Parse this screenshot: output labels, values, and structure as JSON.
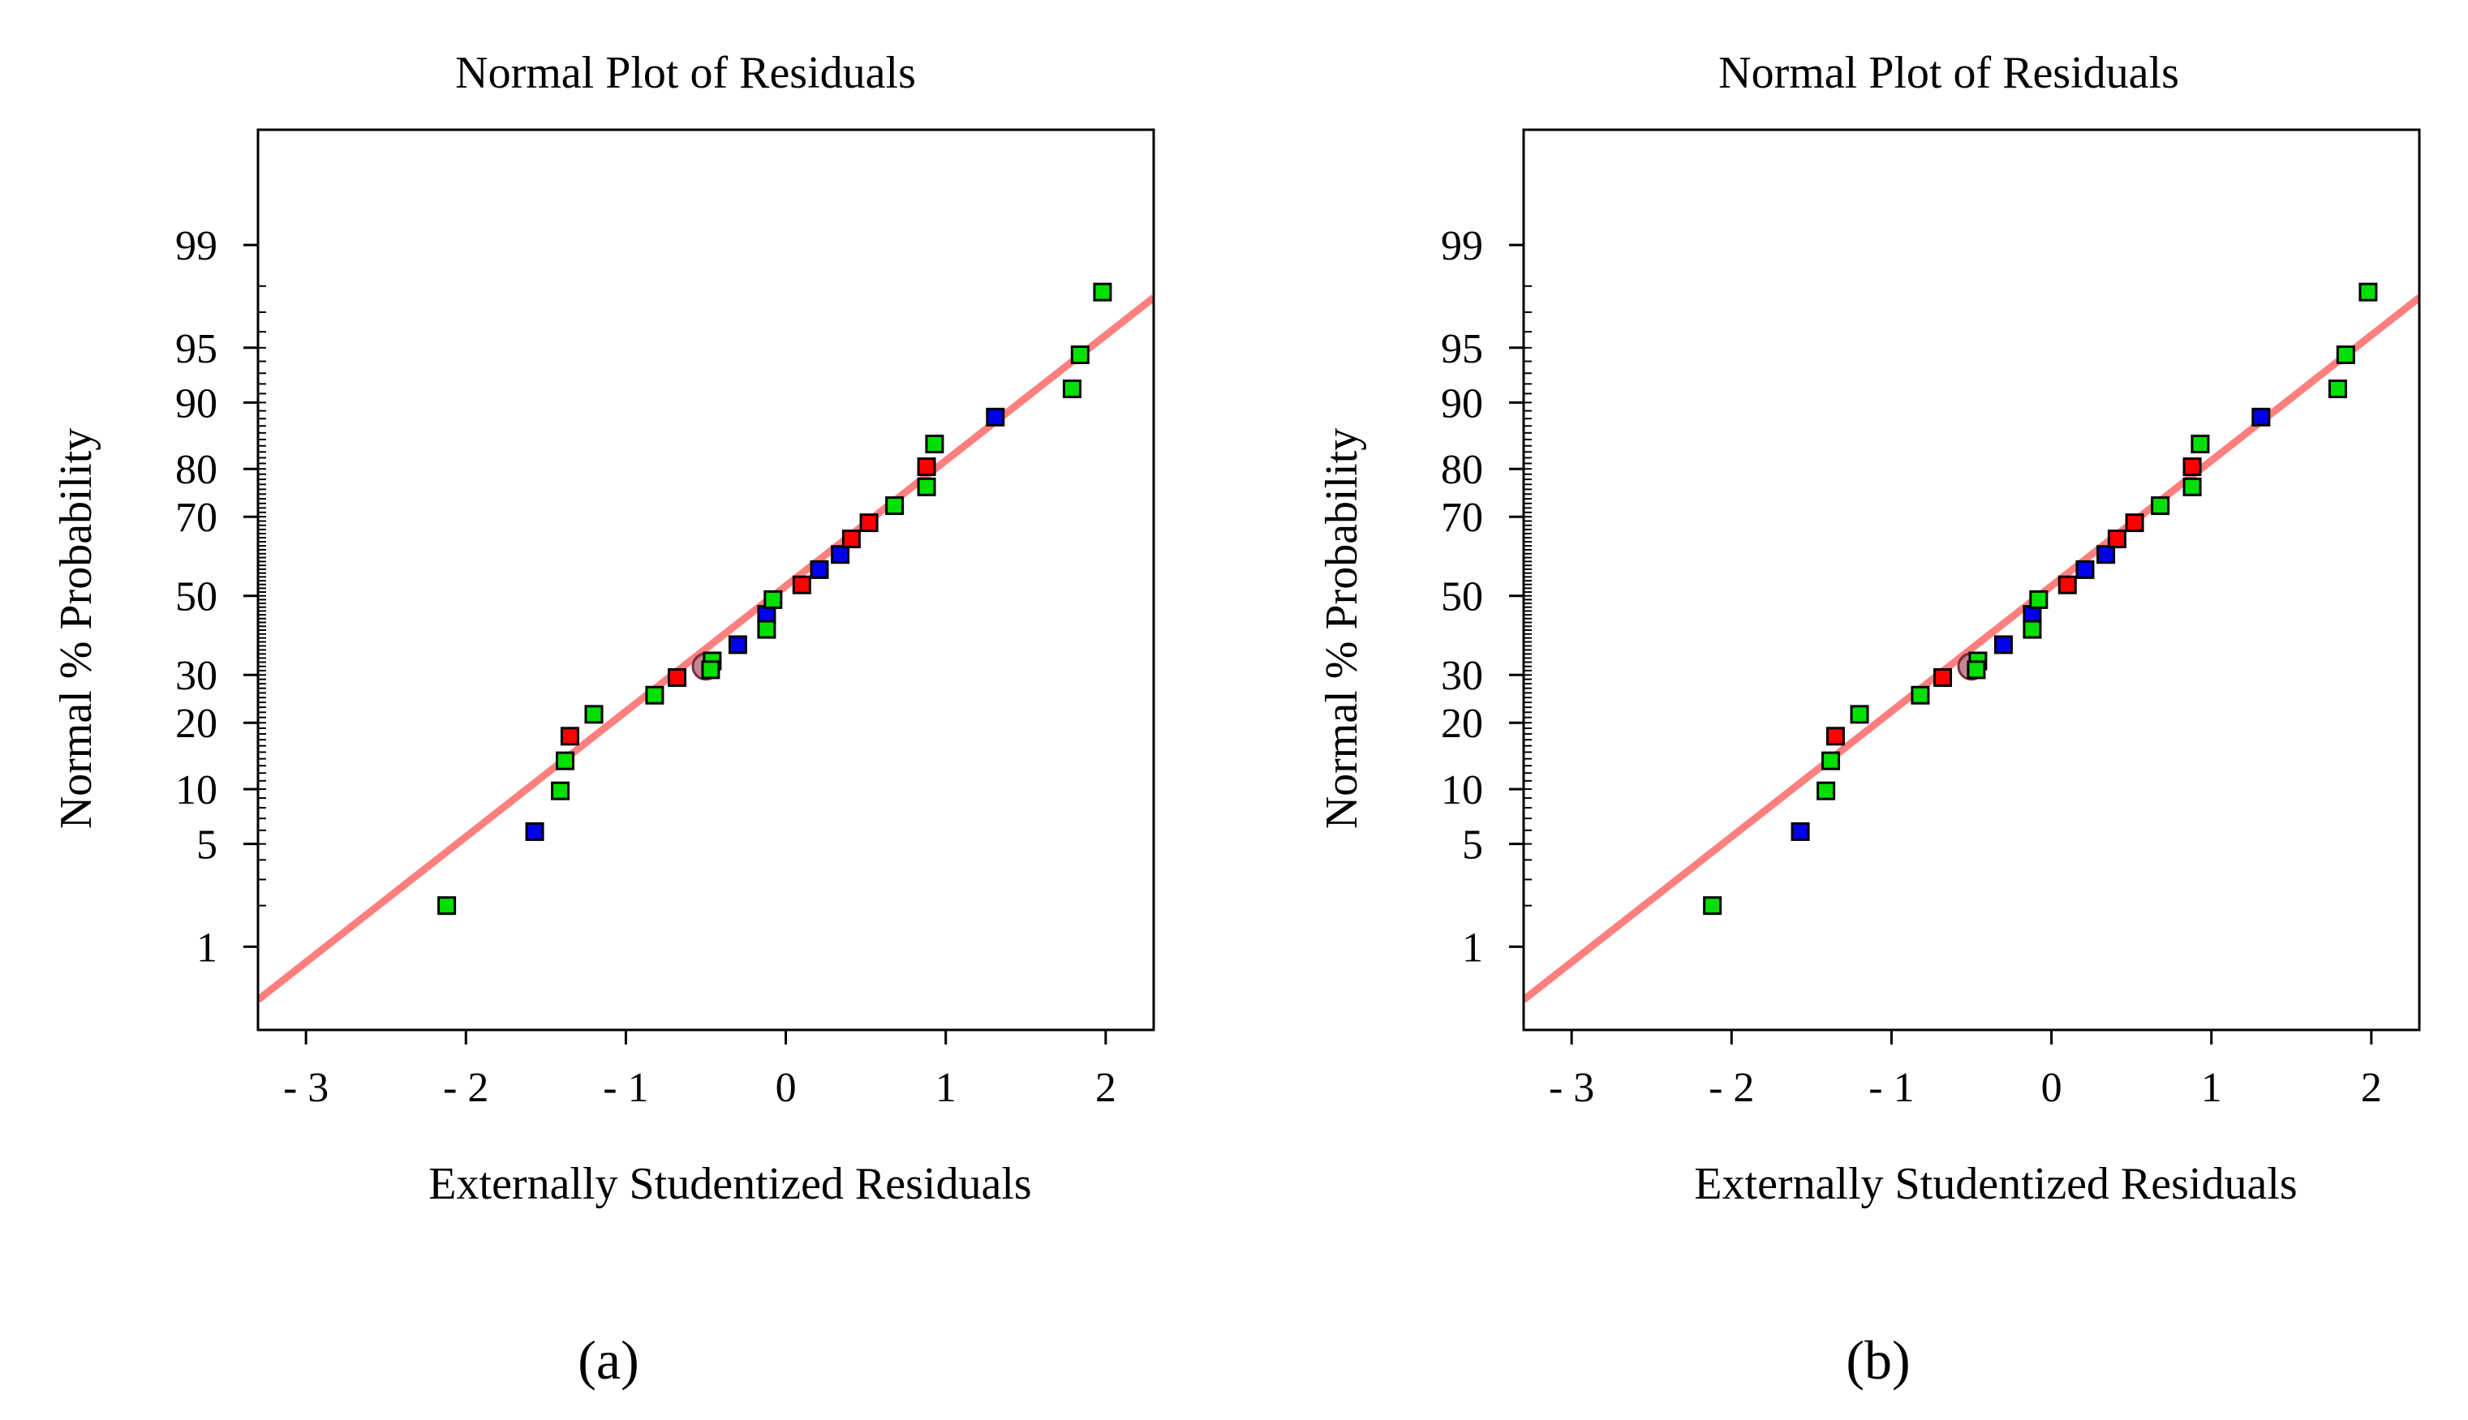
{
  "chart_data": [
    {
      "type": "scatter",
      "title": "Normal Plot of Residuals",
      "xlabel": "Externally Studentized Residuals",
      "ylabel": "Normal % Probability",
      "xlim": [
        -3.3,
        2.3
      ],
      "x_ticks": [
        -3,
        -2,
        -1,
        0,
        1,
        2
      ],
      "x_tick_labels": [
        "- 3",
        "- 2",
        "- 1",
        "0",
        "1",
        "2"
      ],
      "y_ticks": [
        1,
        5,
        10,
        20,
        30,
        50,
        70,
        80,
        90,
        95,
        99
      ],
      "y_tick_labels": [
        "1",
        "5",
        "10",
        "20",
        "30",
        "50",
        "70",
        "80",
        "90",
        "95",
        "99"
      ],
      "caption": "(a)",
      "colors": {
        "red": "#ff0000",
        "green": "#00e000",
        "blue": "#0000ee",
        "line": "#ff7f7f",
        "highlight": "#b06070"
      },
      "reference_line": {
        "x": [
          -3.3,
          2.3
        ],
        "y": [
          0.37,
          97.6
        ]
      },
      "highlight_point": {
        "x": -0.5,
        "y": 32.0
      },
      "points": [
        {
          "x": -2.12,
          "y": 2.0,
          "color": "green"
        },
        {
          "x": -1.57,
          "y": 5.9,
          "color": "blue"
        },
        {
          "x": -1.41,
          "y": 9.8,
          "color": "green"
        },
        {
          "x": -1.38,
          "y": 13.7,
          "color": "green"
        },
        {
          "x": -1.35,
          "y": 17.6,
          "color": "red"
        },
        {
          "x": -1.2,
          "y": 21.6,
          "color": "green"
        },
        {
          "x": -0.82,
          "y": 25.5,
          "color": "green"
        },
        {
          "x": -0.68,
          "y": 29.4,
          "color": "red"
        },
        {
          "x": -0.46,
          "y": 33.3,
          "color": "green"
        },
        {
          "x": -0.47,
          "y": 31.2,
          "color": "green"
        },
        {
          "x": -0.3,
          "y": 37.3,
          "color": "blue"
        },
        {
          "x": -0.12,
          "y": 45.1,
          "color": "blue"
        },
        {
          "x": -0.12,
          "y": 41.2,
          "color": "green"
        },
        {
          "x": -0.08,
          "y": 49.0,
          "color": "green"
        },
        {
          "x": 0.1,
          "y": 52.9,
          "color": "red"
        },
        {
          "x": 0.21,
          "y": 56.9,
          "color": "blue"
        },
        {
          "x": 0.34,
          "y": 60.8,
          "color": "blue"
        },
        {
          "x": 0.41,
          "y": 64.7,
          "color": "red"
        },
        {
          "x": 0.52,
          "y": 68.6,
          "color": "red"
        },
        {
          "x": 0.68,
          "y": 72.5,
          "color": "green"
        },
        {
          "x": 0.88,
          "y": 76.5,
          "color": "green"
        },
        {
          "x": 0.88,
          "y": 80.4,
          "color": "red"
        },
        {
          "x": 0.93,
          "y": 84.3,
          "color": "green"
        },
        {
          "x": 1.31,
          "y": 88.2,
          "color": "blue"
        },
        {
          "x": 1.79,
          "y": 91.5,
          "color": "green"
        },
        {
          "x": 1.84,
          "y": 94.5,
          "color": "green"
        },
        {
          "x": 1.98,
          "y": 97.8,
          "color": "green"
        }
      ]
    },
    {
      "type": "scatter",
      "title": "Normal Plot of Residuals",
      "xlabel": "Externally Studentized Residuals",
      "ylabel": "Normal % Probability",
      "xlim": [
        -3.3,
        2.3
      ],
      "x_ticks": [
        -3,
        -2,
        -1,
        0,
        1,
        2
      ],
      "x_tick_labels": [
        "- 3",
        "- 2",
        "- 1",
        "0",
        "1",
        "2"
      ],
      "y_ticks": [
        1,
        5,
        10,
        20,
        30,
        50,
        70,
        80,
        90,
        95,
        99
      ],
      "y_tick_labels": [
        "1",
        "5",
        "10",
        "20",
        "30",
        "50",
        "70",
        "80",
        "90",
        "95",
        "99"
      ],
      "caption": "(b)",
      "colors": {
        "red": "#ff0000",
        "green": "#00e000",
        "blue": "#0000ee",
        "line": "#ff7f7f",
        "highlight": "#b06070"
      },
      "reference_line": {
        "x": [
          -3.3,
          2.3
        ],
        "y": [
          0.37,
          97.6
        ]
      },
      "highlight_point": {
        "x": -0.5,
        "y": 32.0
      },
      "points": [
        {
          "x": -2.12,
          "y": 2.0,
          "color": "green"
        },
        {
          "x": -1.57,
          "y": 5.9,
          "color": "blue"
        },
        {
          "x": -1.41,
          "y": 9.8,
          "color": "green"
        },
        {
          "x": -1.38,
          "y": 13.7,
          "color": "green"
        },
        {
          "x": -1.35,
          "y": 17.6,
          "color": "red"
        },
        {
          "x": -1.2,
          "y": 21.6,
          "color": "green"
        },
        {
          "x": -0.82,
          "y": 25.5,
          "color": "green"
        },
        {
          "x": -0.68,
          "y": 29.4,
          "color": "red"
        },
        {
          "x": -0.46,
          "y": 33.3,
          "color": "green"
        },
        {
          "x": -0.47,
          "y": 31.2,
          "color": "green"
        },
        {
          "x": -0.3,
          "y": 37.3,
          "color": "blue"
        },
        {
          "x": -0.12,
          "y": 45.1,
          "color": "blue"
        },
        {
          "x": -0.12,
          "y": 41.2,
          "color": "green"
        },
        {
          "x": -0.08,
          "y": 49.0,
          "color": "green"
        },
        {
          "x": 0.1,
          "y": 52.9,
          "color": "red"
        },
        {
          "x": 0.21,
          "y": 56.9,
          "color": "blue"
        },
        {
          "x": 0.34,
          "y": 60.8,
          "color": "blue"
        },
        {
          "x": 0.41,
          "y": 64.7,
          "color": "red"
        },
        {
          "x": 0.52,
          "y": 68.6,
          "color": "red"
        },
        {
          "x": 0.68,
          "y": 72.5,
          "color": "green"
        },
        {
          "x": 0.88,
          "y": 76.5,
          "color": "green"
        },
        {
          "x": 0.88,
          "y": 80.4,
          "color": "red"
        },
        {
          "x": 0.93,
          "y": 84.3,
          "color": "green"
        },
        {
          "x": 1.31,
          "y": 88.2,
          "color": "blue"
        },
        {
          "x": 1.79,
          "y": 91.5,
          "color": "green"
        },
        {
          "x": 1.84,
          "y": 94.5,
          "color": "green"
        },
        {
          "x": 1.98,
          "y": 97.8,
          "color": "green"
        }
      ]
    }
  ]
}
